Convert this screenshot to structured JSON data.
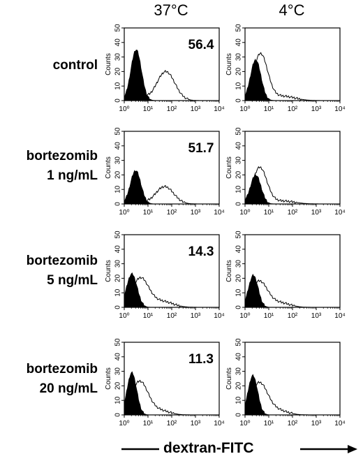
{
  "columns": [
    "37°C",
    "4°C"
  ],
  "rows": [
    {
      "label_line1": "control",
      "label_line2": ""
    },
    {
      "label_line1": "bortezomib",
      "label_line2": "1 ng/mL"
    },
    {
      "label_line1": "bortezomib",
      "label_line2": "5 ng/mL"
    },
    {
      "label_line1": "bortezomib",
      "label_line2": "20 ng/mL"
    }
  ],
  "footer_label": "dextran-FITC",
  "chart_data": {
    "type": "histogram-grid",
    "xlabel": "dextran-FITC",
    "ylabel": "Counts",
    "x_scale": "log",
    "xlim": [
      1,
      10000
    ],
    "ylim": [
      0,
      50
    ],
    "y_ticks": [
      "0",
      "10",
      "20",
      "30",
      "40",
      "50"
    ],
    "x_tick_labels": [
      "10⁰",
      "10¹",
      "10²",
      "10³",
      "10⁴"
    ],
    "fill_color": "#000000",
    "panels": [
      {
        "row": 0,
        "col": 0,
        "value_label": "56.4",
        "filled_peak": {
          "center_log": 0.5,
          "height": 35,
          "width": 0.22
        },
        "open_peak": [
          {
            "center_log": 1.75,
            "height": 20,
            "width": 0.38
          },
          {
            "center_log": 0.5,
            "height": 9,
            "width": 0.25
          }
        ]
      },
      {
        "row": 0,
        "col": 1,
        "value_label": "",
        "filled_peak": {
          "center_log": 0.45,
          "height": 28,
          "width": 0.22
        },
        "open_peak": [
          {
            "center_log": 0.65,
            "height": 32,
            "width": 0.3
          },
          {
            "center_log": 1.6,
            "height": 3,
            "width": 0.5
          }
        ]
      },
      {
        "row": 1,
        "col": 0,
        "value_label": "51.7",
        "filled_peak": {
          "center_log": 0.48,
          "height": 23,
          "width": 0.22
        },
        "open_peak": [
          {
            "center_log": 1.7,
            "height": 12,
            "width": 0.38
          },
          {
            "center_log": 0.45,
            "height": 6,
            "width": 0.25
          }
        ]
      },
      {
        "row": 1,
        "col": 1,
        "value_label": "",
        "filled_peak": {
          "center_log": 0.45,
          "height": 20,
          "width": 0.22
        },
        "open_peak": [
          {
            "center_log": 0.62,
            "height": 25,
            "width": 0.3
          },
          {
            "center_log": 1.6,
            "height": 2,
            "width": 0.5
          }
        ]
      },
      {
        "row": 2,
        "col": 0,
        "value_label": "14.3",
        "filled_peak": {
          "center_log": 0.32,
          "height": 23,
          "width": 0.22
        },
        "open_peak": [
          {
            "center_log": 0.68,
            "height": 20,
            "width": 0.35
          },
          {
            "center_log": 1.6,
            "height": 4,
            "width": 0.45
          }
        ]
      },
      {
        "row": 2,
        "col": 1,
        "value_label": "",
        "filled_peak": {
          "center_log": 0.35,
          "height": 22,
          "width": 0.2
        },
        "open_peak": [
          {
            "center_log": 0.6,
            "height": 18,
            "width": 0.35
          },
          {
            "center_log": 1.5,
            "height": 3,
            "width": 0.4
          }
        ]
      },
      {
        "row": 3,
        "col": 0,
        "value_label": "11.3",
        "filled_peak": {
          "center_log": 0.32,
          "height": 29,
          "width": 0.2
        },
        "open_peak": [
          {
            "center_log": 0.65,
            "height": 23,
            "width": 0.35
          },
          {
            "center_log": 1.5,
            "height": 3,
            "width": 0.4
          }
        ]
      },
      {
        "row": 3,
        "col": 1,
        "value_label": "",
        "filled_peak": {
          "center_log": 0.33,
          "height": 27,
          "width": 0.2
        },
        "open_peak": [
          {
            "center_log": 0.6,
            "height": 22,
            "width": 0.35
          },
          {
            "center_log": 1.4,
            "height": 3,
            "width": 0.4
          }
        ]
      }
    ]
  }
}
